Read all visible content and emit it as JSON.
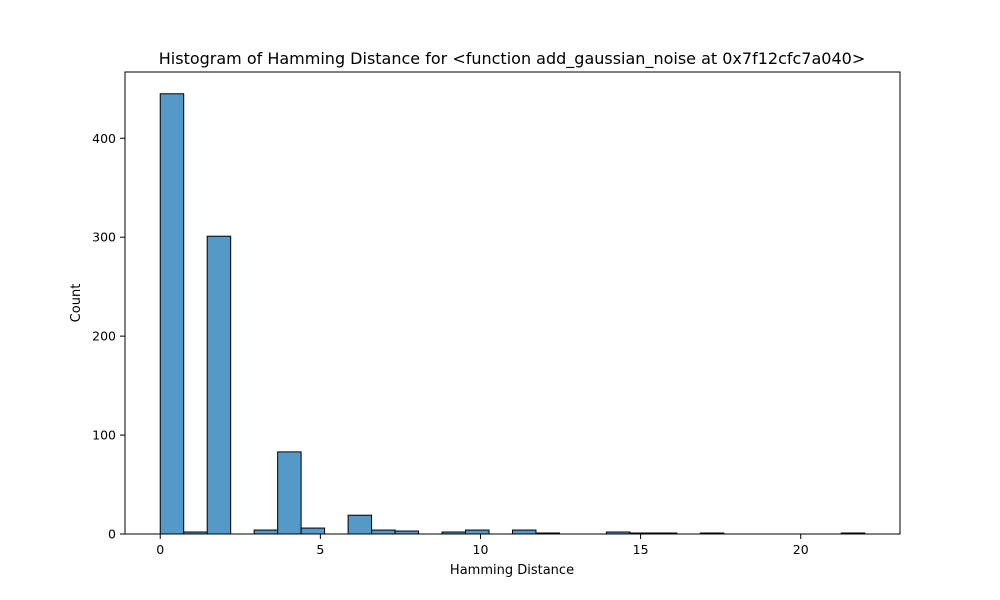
{
  "chart_data": {
    "type": "bar",
    "title": "Histogram of Hamming Distance for <function add_gaussian_noise at 0x7f12cfc7a040>",
    "xlabel": "Hamming Distance",
    "ylabel": "Count",
    "bin_width": 0.7333,
    "bin_start": 0,
    "values": [
      445,
      2,
      301,
      0,
      4,
      83,
      6,
      0,
      19,
      4,
      3,
      0,
      2,
      4,
      0,
      4,
      1,
      0,
      0,
      2,
      1,
      1,
      0,
      1,
      0,
      0,
      0,
      0,
      0,
      1
    ],
    "xlim": [
      -1.1,
      23.1
    ],
    "ylim": [
      0,
      467
    ],
    "xticks": [
      0,
      5,
      10,
      15,
      20
    ],
    "yticks": [
      0,
      100,
      200,
      300,
      400
    ],
    "bar_color": "#5499c7",
    "edge_color": "#000000",
    "grid": false
  }
}
